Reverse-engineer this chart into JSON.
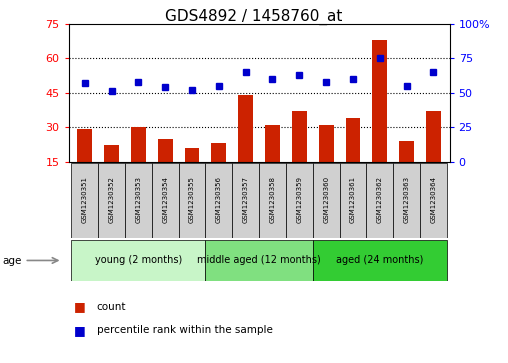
{
  "title": "GDS4892 / 1458760_at",
  "samples": [
    "GSM1230351",
    "GSM1230352",
    "GSM1230353",
    "GSM1230354",
    "GSM1230355",
    "GSM1230356",
    "GSM1230357",
    "GSM1230358",
    "GSM1230359",
    "GSM1230360",
    "GSM1230361",
    "GSM1230362",
    "GSM1230363",
    "GSM1230364"
  ],
  "counts": [
    29,
    22,
    30,
    25,
    21,
    23,
    44,
    31,
    37,
    31,
    34,
    68,
    24,
    37
  ],
  "percentiles": [
    57,
    51,
    58,
    54,
    52,
    55,
    65,
    60,
    63,
    58,
    60,
    75,
    55,
    65
  ],
  "groups": [
    {
      "label": "young (2 months)",
      "start": 0,
      "end": 5,
      "color": "#c8f5c8"
    },
    {
      "label": "middle aged (12 months)",
      "start": 5,
      "end": 9,
      "color": "#80e080"
    },
    {
      "label": "aged (24 months)",
      "start": 9,
      "end": 14,
      "color": "#33cc33"
    }
  ],
  "ylim_left": [
    15,
    75
  ],
  "ylim_right": [
    0,
    100
  ],
  "yticks_left": [
    15,
    30,
    45,
    60,
    75
  ],
  "yticks_right": [
    0,
    25,
    50,
    75,
    100
  ],
  "bar_color": "#cc2200",
  "dot_color": "#0000cc",
  "bg_color": "#ffffff",
  "title_fontsize": 11,
  "sample_box_color": "#d0d0d0"
}
